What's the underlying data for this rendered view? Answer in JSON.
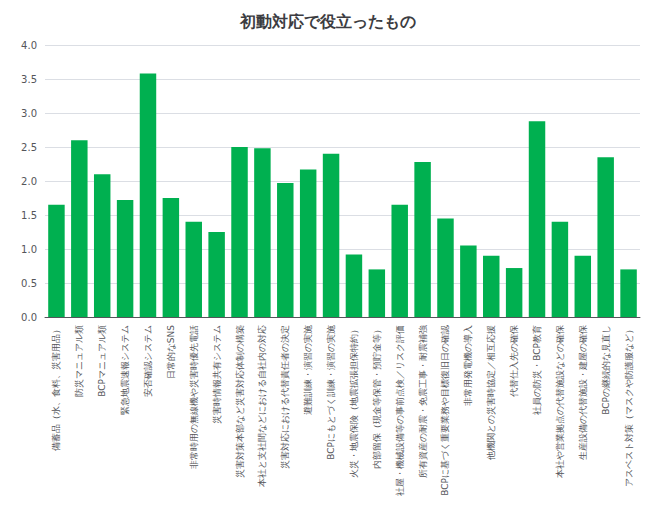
{
  "chart_data": {
    "type": "bar",
    "title": "初動対応で役立ったもの",
    "categories": [
      "備蓄品（水、食料、災害用品）",
      "防災マニュアル類",
      "BCPマニュアル類",
      "緊急地震速報システム",
      "安否確認システム",
      "日常的なSNS",
      "非常時用の無線機や災害時優先電話",
      "災害時情報共有システム",
      "災害対策本部など災害対応体制の構築",
      "本社と支社間などにおける自社内の対応",
      "災害対応における代替責任者の決定",
      "避難訓練・演習の実施",
      "BCPにもとづく訓練・演習の実施",
      "火災・地震保険（地震拡張担保特約）",
      "内部留保（現金等保管・預貯金等）",
      "社屋・機械設備等の事前点検／リスク評価",
      "所有資産の耐震・免震工事・耐震補強",
      "BCPに基づく重要業務や目標復旧日の確認",
      "非常用発電機の導入",
      "他機関との災害時協定／相互応援",
      "代替仕入先の確保",
      "社員の防災・BCP教育",
      "本社や営業拠点の代替施設などの確保",
      "生産設備の代替施設・建屋の確保",
      "BCPの継続的な見直し",
      "アスベスト対策（マスクや防護服など）"
    ],
    "values": [
      1.65,
      2.6,
      2.1,
      1.72,
      3.58,
      1.75,
      1.4,
      1.25,
      2.5,
      2.48,
      1.97,
      2.17,
      2.4,
      0.92,
      0.7,
      1.65,
      2.28,
      1.45,
      1.05,
      0.9,
      0.72,
      2.88,
      1.4,
      0.9,
      2.35,
      0.7
    ],
    "color": "#00B050",
    "ylim": [
      0,
      4
    ],
    "yticks": [
      {
        "value": 0,
        "label": "0.0"
      },
      {
        "value": 0.5,
        "label": "0.5"
      },
      {
        "value": 1,
        "label": "1.0"
      },
      {
        "value": 1.5,
        "label": "1.5"
      },
      {
        "value": 2,
        "label": "2.0"
      },
      {
        "value": 2.5,
        "label": "2.5"
      },
      {
        "value": 3,
        "label": "3.0"
      },
      {
        "value": 3.5,
        "label": "3.5"
      },
      {
        "value": 4,
        "label": "4.0"
      }
    ],
    "grid": true
  }
}
